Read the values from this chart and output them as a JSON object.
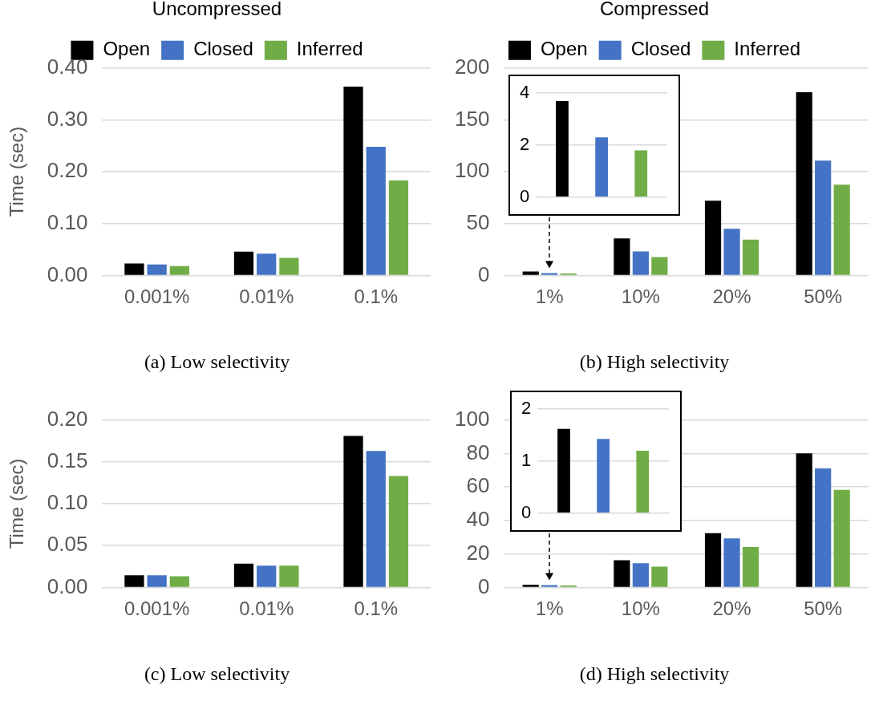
{
  "chart_data": [
    {
      "type": "bar",
      "title": "(a) Low selectivity",
      "ylabel": "Time (sec)",
      "legend_title": "Uncompressed",
      "legend": "top",
      "grid": "y",
      "categories": [
        "0.001%",
        "0.01%",
        "0.1%"
      ],
      "ylim": [
        0,
        0.4
      ],
      "yticks": [
        {
          "value": 0,
          "label": "0.00"
        },
        {
          "value": 0.1,
          "label": "0.10"
        },
        {
          "value": 0.2,
          "label": "0.20"
        },
        {
          "value": 0.3,
          "label": "0.30"
        },
        {
          "value": 0.4,
          "label": "0.40"
        }
      ],
      "series": [
        {
          "name": "Open",
          "color": "#000000",
          "values": [
            0.023,
            0.046,
            0.364
          ]
        },
        {
          "name": "Closed",
          "color": "#4472c4",
          "values": [
            0.021,
            0.042,
            0.248
          ]
        },
        {
          "name": "Inferred",
          "color": "#70ad47",
          "values": [
            0.018,
            0.034,
            0.183
          ]
        }
      ]
    },
    {
      "type": "bar",
      "title": "(b) High selectivity",
      "legend_title": "Compressed",
      "legend": "top",
      "grid": "y",
      "categories": [
        "1%",
        "10%",
        "20%",
        "50%"
      ],
      "ylim": [
        0,
        200
      ],
      "yticks": [
        0,
        50,
        100,
        150,
        200
      ],
      "series": [
        {
          "name": "Open",
          "color": "#000000",
          "values": [
            3.7,
            35.6,
            72.1,
            176.6
          ]
        },
        {
          "name": "Closed",
          "color": "#4472c4",
          "values": [
            2.3,
            23.1,
            45.0,
            110.7
          ]
        },
        {
          "name": "Inferred",
          "color": "#70ad47",
          "values": [
            1.8,
            17.8,
            34.5,
            87.6
          ]
        }
      ]
    },
    {
      "type": "bar",
      "grid": "y",
      "tick_labels": "y",
      "categories": [
        null
      ],
      "ylim": [
        0,
        4
      ],
      "yticks": [
        0,
        2,
        4
      ],
      "series": [
        {
          "color": "#000000",
          "values": [
            3.7
          ]
        },
        {
          "color": "#4472c4",
          "values": [
            2.3
          ]
        },
        {
          "color": "#70ad47",
          "values": [
            1.8
          ]
        }
      ]
    },
    {
      "type": "bar",
      "title": "(c) Low selectivity",
      "ylabel": "Time (sec)",
      "grid": "y",
      "categories": [
        "0.001%",
        "0.01%",
        "0.1%"
      ],
      "ylim": [
        0,
        0.2
      ],
      "yticks": [
        {
          "value": 0,
          "label": "0.00"
        },
        {
          "value": 0.05,
          "label": "0.05"
        },
        {
          "value": 0.1,
          "label": "0.10"
        },
        {
          "value": 0.15,
          "label": "0.15"
        },
        {
          "value": 0.2,
          "label": "0.20"
        }
      ],
      "series": [
        {
          "color": "#000000",
          "values": [
            0.0145,
            0.0285,
            0.181
          ]
        },
        {
          "color": "#4472c4",
          "values": [
            0.0145,
            0.026,
            0.163
          ]
        },
        {
          "color": "#70ad47",
          "values": [
            0.0134,
            0.026,
            0.133
          ]
        }
      ]
    },
    {
      "type": "bar",
      "title": "(d) High selectivity",
      "grid": "y",
      "categories": [
        "1%",
        "10%",
        "20%",
        "50%"
      ],
      "ylim": [
        0,
        100
      ],
      "yticks": [
        0,
        20,
        40,
        60,
        80,
        100
      ],
      "series": [
        {
          "color": "#000000",
          "values": [
            1.62,
            16.2,
            32.4,
            80.0
          ]
        },
        {
          "color": "#4472c4",
          "values": [
            1.43,
            14.4,
            29.3,
            71.1
          ]
        },
        {
          "color": "#70ad47",
          "values": [
            1.2,
            12.4,
            24.1,
            58.3
          ]
        }
      ]
    },
    {
      "type": "bar",
      "grid": "y",
      "tick_labels": "y",
      "categories": [
        null
      ],
      "ylim": [
        0,
        2
      ],
      "yticks": [
        0,
        1,
        2
      ],
      "series": [
        {
          "color": "#000000",
          "values": [
            1.62
          ]
        },
        {
          "color": "#4472c4",
          "values": [
            1.43
          ]
        },
        {
          "color": "#70ad47",
          "values": [
            1.2
          ]
        }
      ]
    }
  ]
}
